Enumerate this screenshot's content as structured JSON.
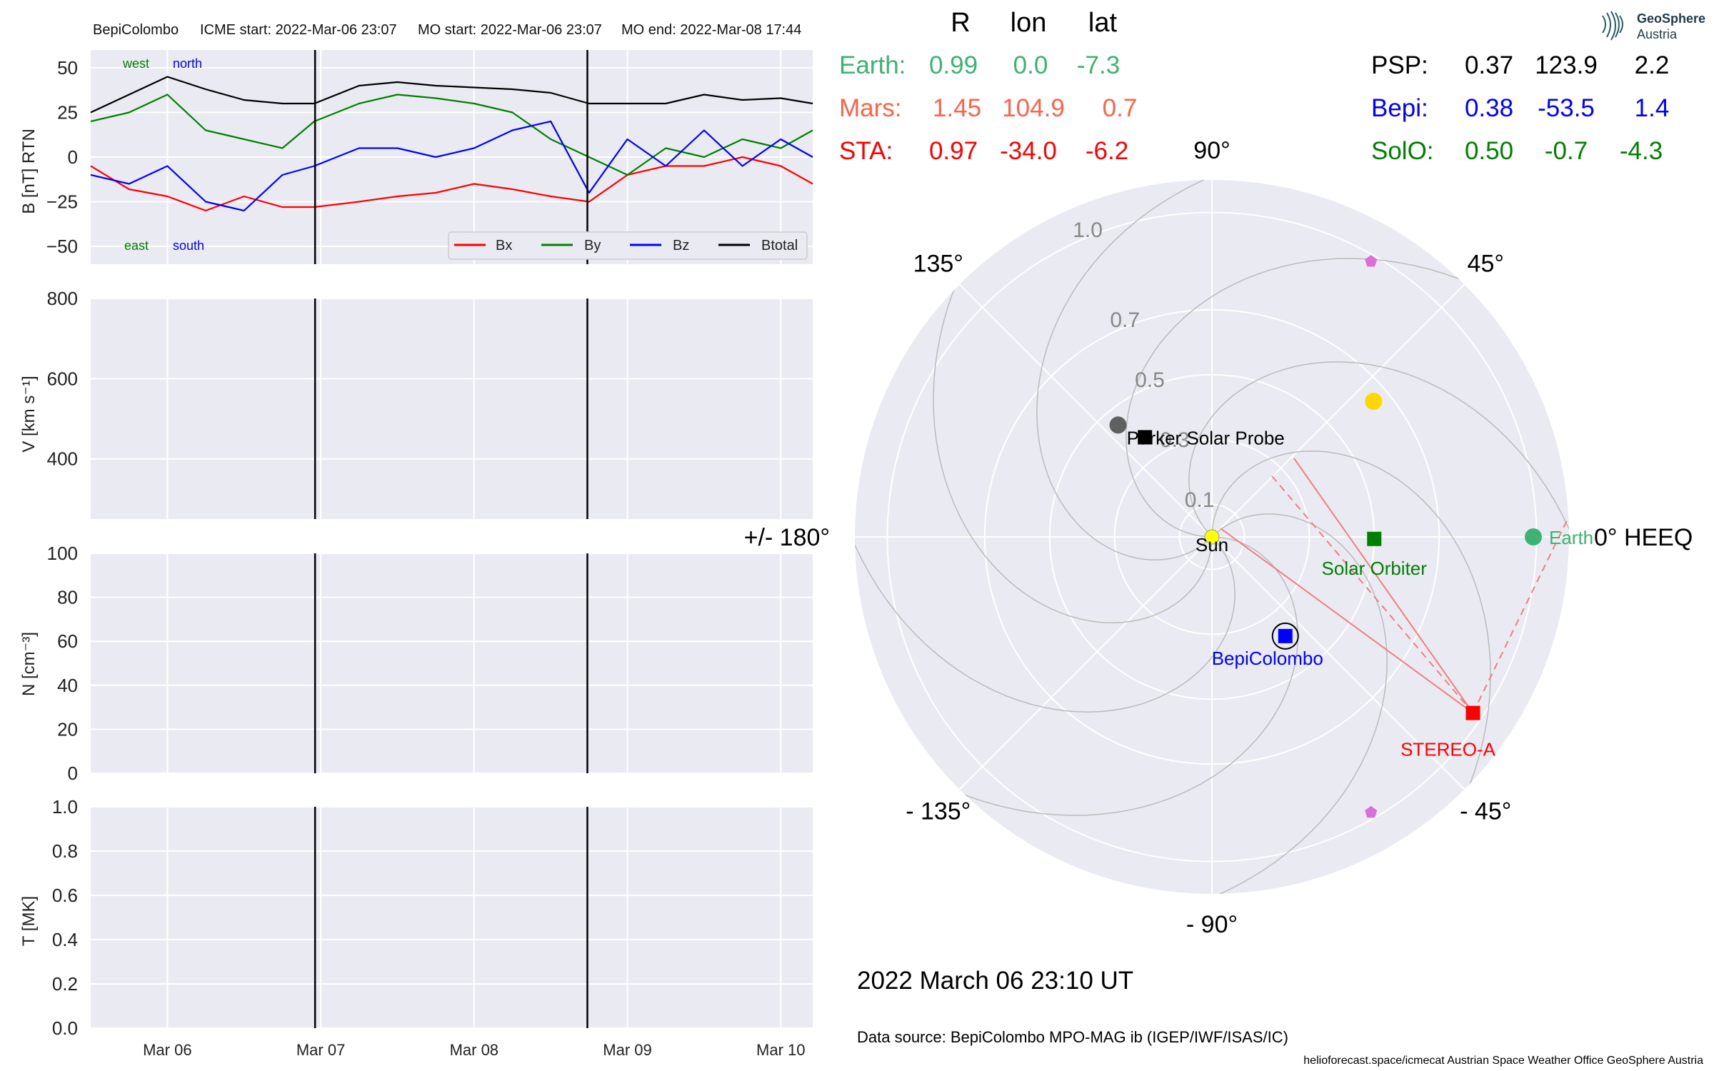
{
  "header": {
    "spacecraft": "BepiColombo",
    "icme_start": "ICME start: 2022-Mar-06 23:07",
    "mo_start": "MO start: 2022-Mar-06 23:07",
    "mo_end": "MO end: 2022-Mar-08 17:44"
  },
  "table": {
    "columns": [
      "R",
      "lon",
      "lat"
    ],
    "left_rows": [
      {
        "name": "Earth:",
        "R": "0.99",
        "lon": "0.0",
        "lat": "-7.3",
        "color": "#3cb371"
      },
      {
        "name": "Mars:",
        "R": "1.45",
        "lon": "104.9",
        "lat": "0.7",
        "color": "#ff6347"
      },
      {
        "name": "STA:",
        "R": "0.97",
        "lon": "-34.0",
        "lat": "-6.2",
        "color": "#ff0000"
      }
    ],
    "right_rows": [
      {
        "name": "PSP:",
        "R": "0.37",
        "lon": "123.9",
        "lat": "2.2",
        "color": "#000000"
      },
      {
        "name": "Bepi:",
        "R": "0.38",
        "lon": "-53.5",
        "lat": "1.4",
        "color": "#0000ff"
      },
      {
        "name": "SolO:",
        "R": "0.50",
        "lon": "-0.7",
        "lat": "-4.3",
        "color": "#008000"
      }
    ]
  },
  "footer": {
    "datetime": "2022 March 06  23:10 UT",
    "source": "Data source: BepiColombo MPO-MAG ib (IGEP/IWF/ISAS/IC)",
    "credits": "helioforecast.space/icmecat   Austrian Space Weather Office   GeoSphere Austria"
  },
  "logo": {
    "line1": "GeoSphere",
    "line2": "Austria"
  },
  "chart_data": [
    {
      "type": "line",
      "ylabel": "B [nT] RTN",
      "ylim": [
        -60,
        60
      ],
      "yticks": [
        50,
        25,
        0,
        -25,
        -50
      ],
      "xlim": [
        "2022-03-05 12:00",
        "2022-03-10 05:00"
      ],
      "annotations": [
        {
          "text": "west",
          "color": "#008000",
          "position": "upper-left"
        },
        {
          "text": "north",
          "color": "#0000ff",
          "position": "upper-left"
        },
        {
          "text": "east",
          "color": "#008000",
          "position": "lower-left"
        },
        {
          "text": "south",
          "color": "#0000ff",
          "position": "lower-left"
        }
      ],
      "legend": {
        "placement": "lower-right",
        "entries": [
          "Bx",
          "By",
          "Bz",
          "Btotal"
        ]
      },
      "vlines": [
        "2022-03-06 23:07",
        "2022-03-08 17:44"
      ],
      "series": [
        {
          "name": "Bx",
          "color": "#ff0000",
          "x": [
            "03-05 12:00",
            "03-05 18:00",
            "03-06 00:00",
            "03-06 06:00",
            "03-06 12:00",
            "03-06 18:00",
            "03-06 23:00",
            "03-07 06:00",
            "03-07 12:00",
            "03-07 18:00",
            "03-08 00:00",
            "03-08 06:00",
            "03-08 12:00",
            "03-08 18:00",
            "03-09 00:00",
            "03-09 06:00",
            "03-09 12:00",
            "03-09 18:00",
            "03-10 00:00",
            "03-10 05:00"
          ],
          "values": [
            -5,
            -18,
            -22,
            -30,
            -22,
            -28,
            -28,
            -25,
            -22,
            -20,
            -15,
            -18,
            -22,
            -25,
            -10,
            -5,
            -5,
            0,
            -5,
            -15
          ]
        },
        {
          "name": "By",
          "color": "#008000",
          "x": [
            "03-05 12:00",
            "03-05 18:00",
            "03-06 00:00",
            "03-06 06:00",
            "03-06 12:00",
            "03-06 18:00",
            "03-06 23:00",
            "03-07 06:00",
            "03-07 12:00",
            "03-07 18:00",
            "03-08 00:00",
            "03-08 06:00",
            "03-08 12:00",
            "03-08 18:00",
            "03-09 00:00",
            "03-09 06:00",
            "03-09 12:00",
            "03-09 18:00",
            "03-10 00:00",
            "03-10 05:00"
          ],
          "values": [
            20,
            25,
            35,
            15,
            10,
            5,
            20,
            30,
            35,
            33,
            30,
            25,
            10,
            0,
            -10,
            5,
            0,
            10,
            5,
            15
          ]
        },
        {
          "name": "Bz",
          "color": "#0000ff",
          "x": [
            "03-05 12:00",
            "03-05 18:00",
            "03-06 00:00",
            "03-06 06:00",
            "03-06 12:00",
            "03-06 18:00",
            "03-06 23:00",
            "03-07 06:00",
            "03-07 12:00",
            "03-07 18:00",
            "03-08 00:00",
            "03-08 06:00",
            "03-08 12:00",
            "03-08 18:00",
            "03-09 00:00",
            "03-09 06:00",
            "03-09 12:00",
            "03-09 18:00",
            "03-10 00:00",
            "03-10 05:00"
          ],
          "values": [
            -10,
            -15,
            -5,
            -25,
            -30,
            -10,
            -5,
            5,
            5,
            0,
            5,
            15,
            20,
            -20,
            10,
            -5,
            15,
            -5,
            10,
            0
          ]
        },
        {
          "name": "Btotal",
          "color": "#000000",
          "x": [
            "03-05 12:00",
            "03-05 18:00",
            "03-06 00:00",
            "03-06 06:00",
            "03-06 12:00",
            "03-06 18:00",
            "03-06 23:00",
            "03-07 06:00",
            "03-07 12:00",
            "03-07 18:00",
            "03-08 00:00",
            "03-08 06:00",
            "03-08 12:00",
            "03-08 18:00",
            "03-09 00:00",
            "03-09 06:00",
            "03-09 12:00",
            "03-09 18:00",
            "03-10 00:00",
            "03-10 05:00"
          ],
          "values": [
            25,
            35,
            45,
            38,
            32,
            30,
            30,
            40,
            42,
            40,
            39,
            38,
            36,
            30,
            30,
            30,
            35,
            32,
            33,
            30
          ]
        }
      ]
    },
    {
      "type": "line",
      "ylabel": "V [km s⁻¹]",
      "ylim": [
        250,
        800
      ],
      "yticks": [
        800,
        600,
        400
      ],
      "series": [],
      "vlines": [
        "2022-03-06 23:07",
        "2022-03-08 17:44"
      ]
    },
    {
      "type": "line",
      "ylabel": "N [cm⁻³]",
      "ylim": [
        0,
        100
      ],
      "yticks": [
        100,
        80,
        60,
        40,
        20,
        0
      ],
      "series": [],
      "vlines": [
        "2022-03-06 23:07",
        "2022-03-08 17:44"
      ]
    },
    {
      "type": "line",
      "ylabel": "T [MK]",
      "ylim": [
        0,
        1
      ],
      "yticks": [
        "1.0",
        "0.8",
        "0.6",
        "0.4",
        "0.2",
        "0.0"
      ],
      "xticks": [
        "Mar 06",
        "Mar 07",
        "Mar 08",
        "Mar 09",
        "Mar 10"
      ],
      "series": [],
      "vlines": [
        "2022-03-06 23:07",
        "2022-03-08 17:44"
      ]
    },
    {
      "type": "scatter",
      "projection": "polar",
      "rlim": [
        0,
        1.1
      ],
      "rticks": [
        "0.1",
        "0.3",
        "0.5",
        "0.7",
        "1.0"
      ],
      "angle_labels": [
        "90°",
        "45°",
        "0° HEEQ",
        "- 45°",
        "- 90°",
        "- 135°",
        "+/- 180°",
        "135°"
      ],
      "objects": [
        {
          "label": "Sun",
          "r": 0.0,
          "lon": 0.0,
          "color": "#ffff00",
          "marker": "circle"
        },
        {
          "label": "Earth",
          "r": 0.99,
          "lon": 0.0,
          "color": "#3cb371",
          "marker": "circle"
        },
        {
          "label": "Solar Orbiter",
          "r": 0.5,
          "lon": -0.7,
          "color": "#008000",
          "marker": "square"
        },
        {
          "label": "BepiColombo",
          "r": 0.38,
          "lon": -53.5,
          "color": "#0000ff",
          "marker": "square"
        },
        {
          "label": "Parker Solar Probe",
          "r": 0.37,
          "lon": 123.9,
          "color": "#000000",
          "marker": "square"
        },
        {
          "label": "STEREO-A",
          "r": 0.97,
          "lon": -34.0,
          "color": "#ff0000",
          "marker": "square"
        },
        {
          "label": "",
          "r": 0.65,
          "lon": 40.0,
          "color": "#ffd700",
          "marker": "circle"
        },
        {
          "label": "",
          "r": 0.45,
          "lon": 130.0,
          "color": "#606060",
          "marker": "circle"
        },
        {
          "label": "",
          "r": 0.98,
          "lon": 60.0,
          "color": "#da70d6",
          "marker": "pentagon"
        },
        {
          "label": "",
          "r": 0.98,
          "lon": -60.0,
          "color": "#da70d6",
          "marker": "pentagon"
        }
      ]
    }
  ]
}
